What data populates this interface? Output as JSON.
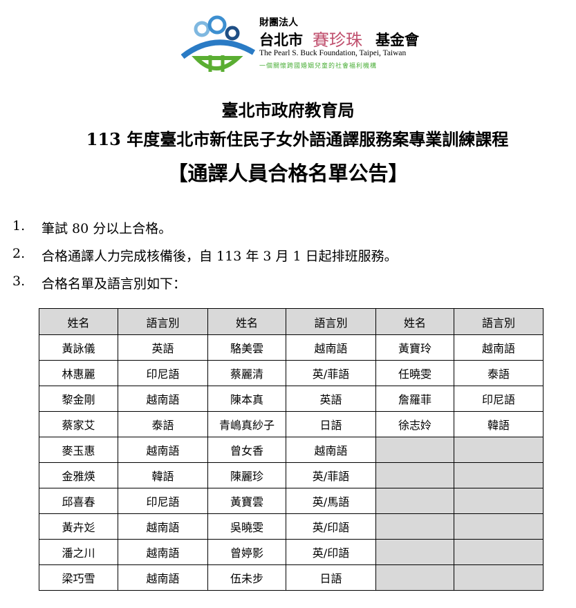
{
  "logo": {
    "org_type": "財團法人",
    "city": "台北市",
    "name_script": "賽珍珠",
    "suffix": "基金會",
    "english": "The Pearl S. Buck Foundation, Taipei, Taiwan",
    "tagline": "一個關懷跨國婚姻兒童的社會福利機構"
  },
  "header": {
    "line1": "臺北市政府教育局",
    "line2": "113 年度臺北市新住民子女外語通譯服務案專業訓練課程",
    "line3": "【通譯人員合格名單公告】"
  },
  "items": [
    {
      "num": "1.",
      "text": "筆試 80 分以上合格。"
    },
    {
      "num": "2.",
      "text": "合格通譯人力完成核備後，自 113 年 3 月 1 日起排班服務。"
    },
    {
      "num": "3.",
      "text": "合格名單及語言別如下："
    }
  ],
  "table": {
    "headers": [
      "姓名",
      "語言別",
      "姓名",
      "語言別",
      "姓名",
      "語言別"
    ],
    "rows": [
      [
        "黃詠儀",
        "英語",
        "駱美雲",
        "越南語",
        "黃寶玲",
        "越南語"
      ],
      [
        "林惠麗",
        "印尼語",
        "蔡麗清",
        "英/菲語",
        "任曉雯",
        "泰語"
      ],
      [
        "黎金剛",
        "越南語",
        "陳本真",
        "英語",
        "詹羅菲",
        "印尼語"
      ],
      [
        "蔡家艾",
        "泰語",
        "青嶋真紗子",
        "日語",
        "徐志姈",
        "韓語"
      ],
      [
        "麥玉惠",
        "越南語",
        "曾女香",
        "越南語",
        "",
        ""
      ],
      [
        "金雅煐",
        "韓語",
        "陳麗珍",
        "英/菲語",
        "",
        ""
      ],
      [
        "邱喜春",
        "印尼語",
        "黃寶雲",
        "英/馬語",
        "",
        ""
      ],
      [
        "黃卉彣",
        "越南語",
        "吳曉雯",
        "英/印語",
        "",
        ""
      ],
      [
        "潘之川",
        "越南語",
        "曾婷影",
        "英/印語",
        "",
        ""
      ],
      [
        "梁巧雪",
        "越南語",
        "伍未步",
        "日語",
        "",
        ""
      ]
    ]
  }
}
